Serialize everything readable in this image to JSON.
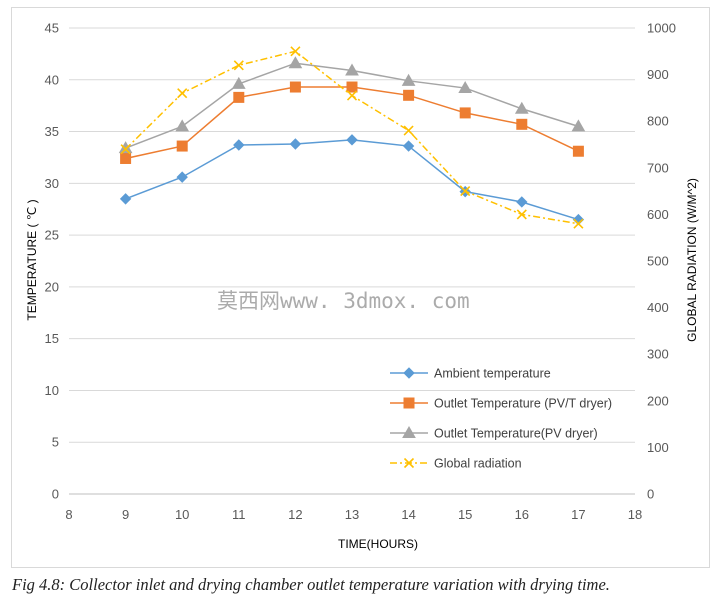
{
  "watermark": "莫西网www. 3dmox. com",
  "caption": "Fig 4.8: Collector inlet and drying chamber outlet temperature variation with drying time.",
  "chart_data": {
    "type": "line",
    "xlabel": "TIME(HOURS)",
    "ylabel": "TEMPERATURE ( ℃ )",
    "y2label": "GLOBAL RADIATION (W/M^2)",
    "xlim": [
      8,
      18
    ],
    "ylim": [
      0,
      45
    ],
    "y2lim": [
      0,
      1000
    ],
    "x_ticks": [
      8,
      9,
      10,
      11,
      12,
      13,
      14,
      15,
      16,
      17,
      18
    ],
    "y_ticks": [
      0,
      5,
      10,
      15,
      20,
      25,
      30,
      35,
      40,
      45
    ],
    "y2_ticks": [
      0,
      100,
      200,
      300,
      400,
      500,
      600,
      700,
      800,
      900,
      1000
    ],
    "grid": "horizontal",
    "legend_position": "bottom-right",
    "x": [
      9,
      10,
      11,
      12,
      13,
      14,
      15,
      16,
      17
    ],
    "series": [
      {
        "name": "Ambient temperature",
        "axis": "left",
        "marker": "diamond",
        "color": "#5b9bd5",
        "dash": "solid",
        "values": [
          28.5,
          30.6,
          33.7,
          33.8,
          34.2,
          33.6,
          29.2,
          28.2,
          26.5
        ]
      },
      {
        "name": "Outlet Temperature (PV/T dryer)",
        "axis": "left",
        "marker": "square",
        "color": "#ed7d31",
        "dash": "solid",
        "values": [
          32.4,
          33.6,
          38.3,
          39.3,
          39.3,
          38.5,
          36.8,
          35.7,
          33.1
        ]
      },
      {
        "name": "Outlet Temperature(PV dryer)",
        "axis": "left",
        "marker": "triangle",
        "color": "#a5a5a5",
        "dash": "solid",
        "values": [
          33.4,
          35.5,
          39.6,
          41.6,
          40.9,
          39.9,
          39.2,
          37.2,
          35.5
        ]
      },
      {
        "name": "Global radiation",
        "axis": "right",
        "marker": "x",
        "color": "#ffc000",
        "dash": "dashdot",
        "values": [
          740,
          860,
          920,
          950,
          855,
          780,
          650,
          600,
          580
        ]
      }
    ]
  }
}
